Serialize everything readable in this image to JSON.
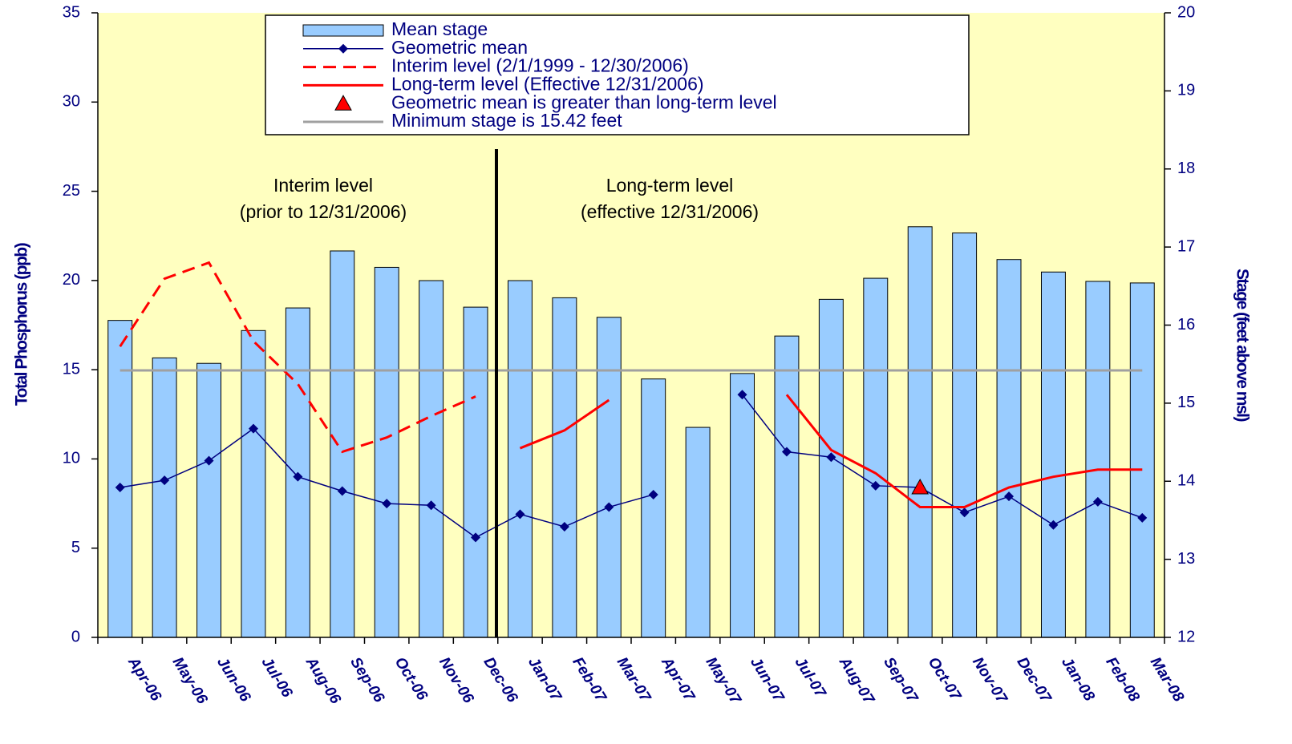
{
  "chart_data": {
    "type": "combo",
    "y_label": "Total Phosphorus (ppb)",
    "y2_label": "Stage (feet above msl)",
    "annotations": [
      "Interim level",
      "(prior to 12/31/2006)",
      "Long-term level",
      "(effective 12/31/2006)"
    ],
    "categories": [
      "Apr-06",
      "May-06",
      "Jun-06",
      "Jul-06",
      "Aug-06",
      "Sep-06",
      "Oct-06",
      "Nov-06",
      "Dec-06",
      "Jan-07",
      "Feb-07",
      "Mar-07",
      "Apr-07",
      "May-07",
      "Jun-07",
      "Jul-07",
      "Aug-07",
      "Sep-07",
      "Oct-07",
      "Nov-07",
      "Dec-07",
      "Jan-08",
      "Feb-08",
      "Mar-08"
    ],
    "ylim": [
      0,
      35
    ],
    "yticks": [
      0,
      5,
      10,
      15,
      20,
      25,
      30,
      35
    ],
    "y2lim": [
      12,
      20
    ],
    "y2ticks": [
      12,
      13,
      14,
      15,
      16,
      17,
      18,
      19,
      20
    ],
    "series": [
      {
        "name": "Mean stage",
        "type": "bar",
        "axis": "y2",
        "color": "#99ccff",
        "values": [
          16.06,
          15.58,
          15.51,
          15.93,
          16.22,
          16.95,
          16.74,
          16.57,
          16.23,
          16.57,
          16.35,
          16.1,
          15.31,
          14.69,
          15.38,
          15.86,
          16.33,
          16.6,
          17.26,
          17.18,
          16.84,
          16.68,
          16.56,
          16.54
        ]
      },
      {
        "name": "Geometric mean",
        "type": "line",
        "color": "#000080",
        "marker": "diamond",
        "values": [
          8.4,
          8.8,
          9.9,
          11.7,
          9.0,
          8.2,
          7.5,
          7.4,
          5.6,
          6.9,
          6.2,
          7.3,
          8.0,
          null,
          13.6,
          10.4,
          10.1,
          8.5,
          8.4,
          7.0,
          7.9,
          6.3,
          7.6,
          6.7
        ]
      },
      {
        "name": "Interim level (2/1/1999 - 12/30/2006)",
        "type": "line",
        "color": "#ff0000",
        "dash": true,
        "values": [
          16.3,
          20.1,
          21.0,
          16.6,
          14.2,
          10.4,
          11.2,
          12.4,
          13.5,
          null,
          null,
          null,
          null,
          null,
          null,
          null,
          null,
          null,
          null,
          null,
          null,
          null,
          null,
          null
        ]
      },
      {
        "name": "Long-term level (Effective 12/31/2006)",
        "type": "line",
        "color": "#ff0000",
        "values": [
          null,
          null,
          null,
          null,
          null,
          null,
          null,
          null,
          null,
          10.6,
          11.6,
          13.3,
          null,
          null,
          null,
          13.6,
          10.5,
          9.2,
          7.3,
          7.3,
          8.4,
          9.0,
          9.4,
          9.4
        ]
      },
      {
        "name": "Geometric mean is greater than long-term level",
        "type": "marker",
        "color": "#ff0000",
        "marker": "triangle",
        "values": [
          null,
          null,
          null,
          null,
          null,
          null,
          null,
          null,
          null,
          null,
          null,
          null,
          null,
          null,
          null,
          null,
          null,
          null,
          8.4,
          null,
          null,
          null,
          null,
          null
        ]
      },
      {
        "name": "Minimum stage is 15.42 feet",
        "type": "line",
        "axis": "y2",
        "color": "#a0a0a0",
        "values": [
          15.42,
          15.42,
          15.42,
          15.42,
          15.42,
          15.42,
          15.42,
          15.42,
          15.42,
          15.42,
          15.42,
          15.42,
          15.42,
          15.42,
          15.42,
          15.42,
          15.42,
          15.42,
          15.42,
          15.42,
          15.42,
          15.42,
          15.42,
          15.42
        ]
      }
    ]
  }
}
